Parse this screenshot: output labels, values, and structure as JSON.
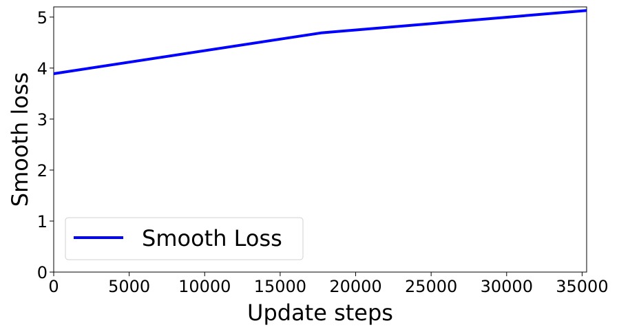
{
  "chart_data": {
    "type": "line",
    "xlabel": "Update steps",
    "ylabel": "Smooth loss",
    "xlim": [
      0,
      35300
    ],
    "ylim": [
      0,
      5.2
    ],
    "xticks": [
      0,
      5000,
      10000,
      15000,
      20000,
      25000,
      30000,
      35000
    ],
    "yticks": [
      0,
      1,
      2,
      3,
      4,
      5
    ],
    "xtick_labels": [
      "0",
      "5000",
      "10000",
      "15000",
      "20000",
      "25000",
      "30000",
      "35000"
    ],
    "ytick_labels": [
      "0",
      "1",
      "2",
      "3",
      "4",
      "5"
    ],
    "legend_position": "lower-left",
    "grid": false,
    "series": [
      {
        "name": "Smooth Loss",
        "color": "#0000ff",
        "x": [
          0,
          17700,
          35300
        ],
        "y": [
          3.89,
          4.69,
          5.13
        ]
      }
    ]
  }
}
